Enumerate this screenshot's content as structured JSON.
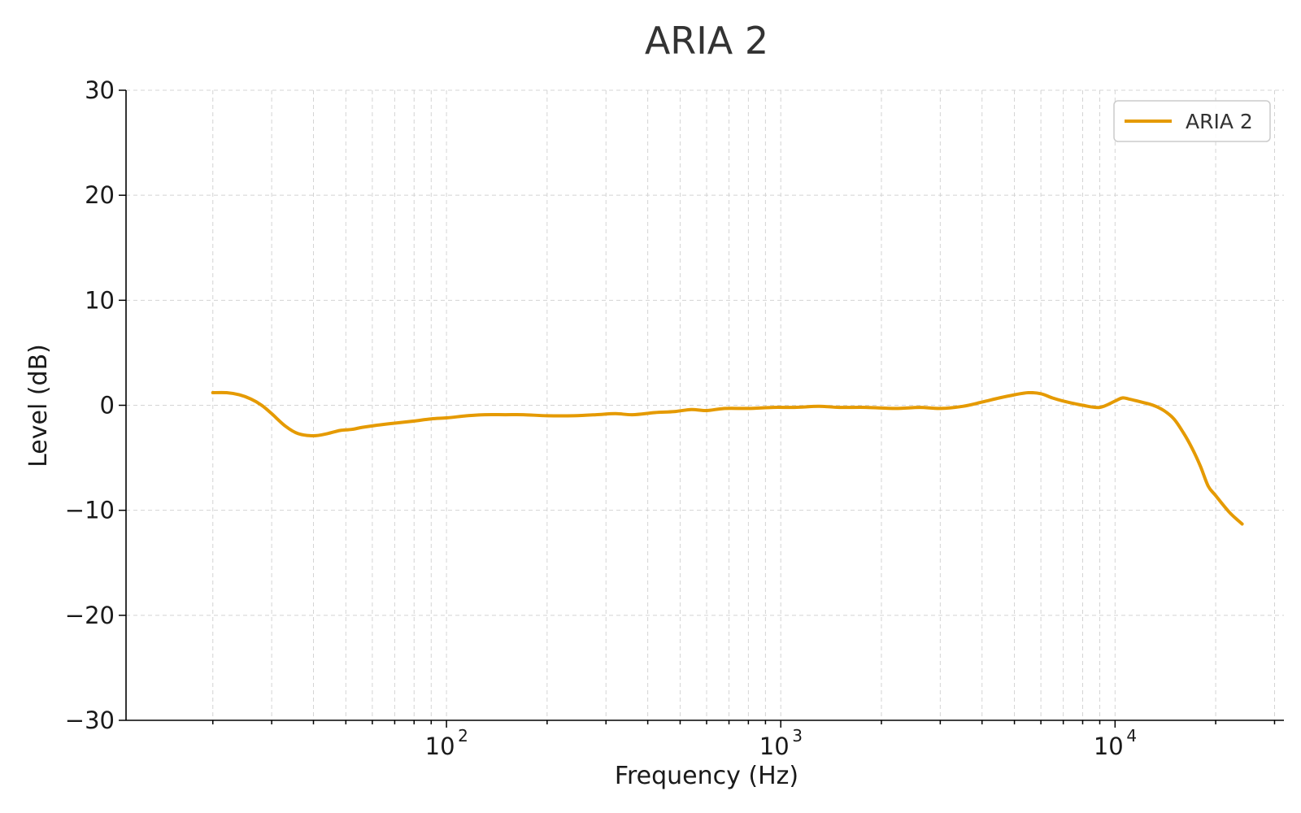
{
  "chart_data": {
    "type": "line",
    "title": "ARIA 2",
    "xlabel": "Frequency (Hz)",
    "ylabel": "Level (dB)",
    "xscale": "log",
    "xlim": [
      11,
      32000
    ],
    "ylim": [
      -30,
      30
    ],
    "yticks": [
      30,
      20,
      10,
      0,
      -10,
      -20,
      -30
    ],
    "ytick_labels": [
      "30",
      "20",
      "10",
      "0",
      "−10",
      "−20",
      "−30"
    ],
    "xticks": [
      {
        "base": "10",
        "exp": "2",
        "value": 100
      },
      {
        "base": "10",
        "exp": "3",
        "value": 1000
      },
      {
        "base": "10",
        "exp": "4",
        "value": 10000
      }
    ],
    "grid": true,
    "legend_position": "top-right",
    "colors": {
      "series": "#e59a00"
    },
    "series": [
      {
        "name": "ARIA 2",
        "x": [
          20,
          22,
          24,
          26,
          28,
          30,
          33,
          36,
          40,
          44,
          48,
          52,
          56,
          62,
          70,
          80,
          90,
          100,
          115,
          130,
          150,
          170,
          200,
          240,
          280,
          320,
          360,
          420,
          480,
          540,
          600,
          680,
          800,
          950,
          1100,
          1300,
          1500,
          1800,
          2200,
          2600,
          3000,
          3500,
          4000,
          4500,
          5000,
          5500,
          6000,
          6500,
          7000,
          8000,
          9000,
          10000,
          10500,
          11000,
          12000,
          13000,
          14000,
          15000,
          16000,
          17000,
          18000,
          19000,
          20000,
          22000,
          24000
        ],
        "y": [
          1.2,
          1.2,
          1.0,
          0.6,
          0.0,
          -0.8,
          -2.0,
          -2.7,
          -2.9,
          -2.7,
          -2.4,
          -2.3,
          -2.1,
          -1.9,
          -1.7,
          -1.5,
          -1.3,
          -1.2,
          -1.0,
          -0.9,
          -0.9,
          -0.9,
          -1.0,
          -1.0,
          -0.9,
          -0.8,
          -0.9,
          -0.7,
          -0.6,
          -0.4,
          -0.5,
          -0.3,
          -0.3,
          -0.2,
          -0.2,
          -0.1,
          -0.2,
          -0.2,
          -0.3,
          -0.2,
          -0.3,
          -0.1,
          0.3,
          0.7,
          1.0,
          1.2,
          1.1,
          0.7,
          0.4,
          0.0,
          -0.2,
          0.4,
          0.7,
          0.6,
          0.3,
          0.0,
          -0.5,
          -1.3,
          -2.6,
          -4.1,
          -5.8,
          -7.7,
          -8.6,
          -10.2,
          -11.3
        ]
      }
    ]
  }
}
